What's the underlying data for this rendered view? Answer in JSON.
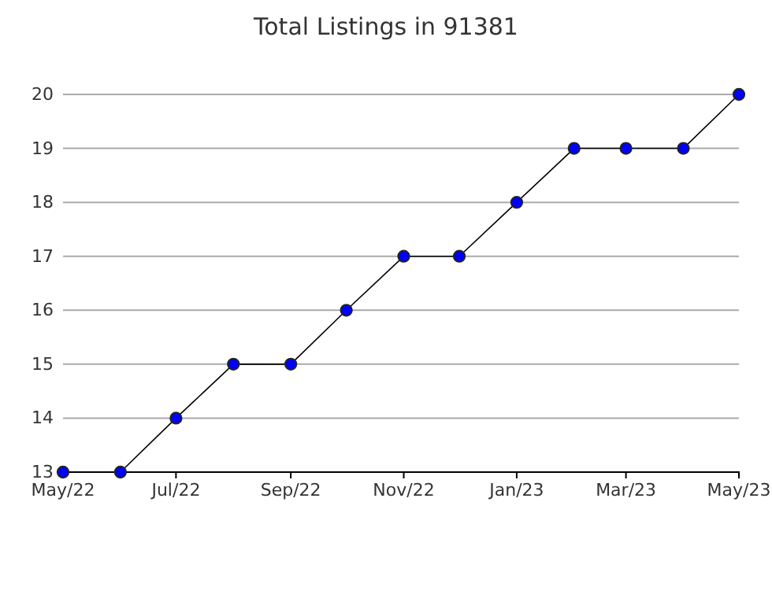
{
  "chart_data": {
    "type": "line",
    "title": "Total Listings in 91381",
    "x": [
      "2022-05",
      "2022-06",
      "2022-07",
      "2022-08",
      "2022-09",
      "2022-10",
      "2022-11",
      "2022-12",
      "2023-01",
      "2023-02",
      "2023-03",
      "2023-04",
      "2023-05"
    ],
    "series": [
      {
        "color": "#0000ff",
        "values": [
          13,
          13,
          14,
          15,
          15,
          16,
          17,
          17,
          18,
          19,
          19,
          19,
          20
        ]
      }
    ],
    "xlim": [
      "2022-05",
      "2023-05"
    ],
    "xticks": [
      {
        "value": "2022-05",
        "label": "May/22"
      },
      {
        "value": "2022-07",
        "label": "Jul/22"
      },
      {
        "value": "2022-09",
        "label": "Sep/22"
      },
      {
        "value": "2022-11",
        "label": "Nov/22"
      },
      {
        "value": "2023-01",
        "label": "Jan/23"
      },
      {
        "value": "2023-03",
        "label": "Mar/23"
      },
      {
        "value": "2023-05",
        "label": "May/23"
      }
    ],
    "ylim": [
      13,
      20
    ],
    "yticks": [
      13,
      14,
      15,
      16,
      17,
      18,
      19,
      20
    ],
    "grid": "y",
    "marker": "circle",
    "line_style": "solid"
  }
}
